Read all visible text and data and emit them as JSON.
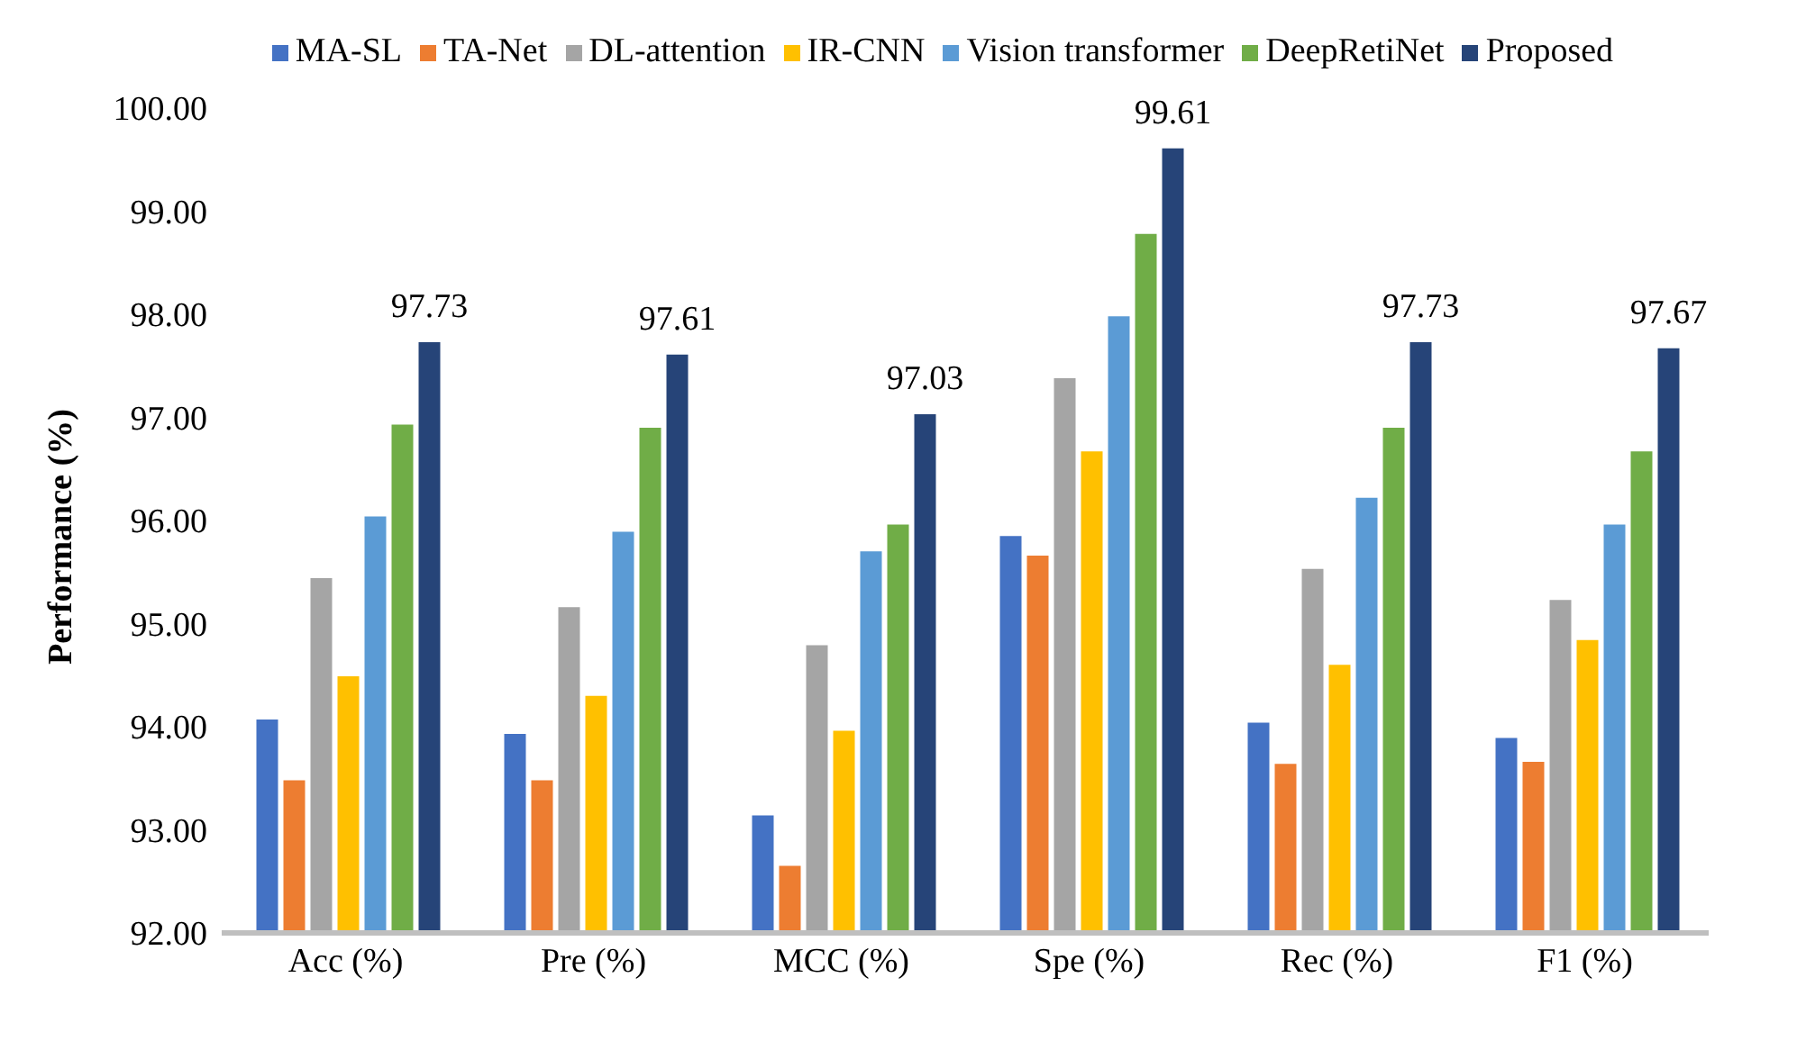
{
  "chart_data": {
    "type": "bar",
    "ylabel": "Performance (%)",
    "categories": [
      "Acc (%)",
      "Pre (%)",
      "MCC (%)",
      "Spe (%)",
      "Rec (%)",
      "F1 (%)"
    ],
    "series": [
      {
        "name": "MA-SL",
        "color": "#4472c4",
        "values": [
          94.07,
          93.93,
          93.14,
          95.85,
          94.04,
          93.89
        ]
      },
      {
        "name": "TA-Net",
        "color": "#ed7d31",
        "values": [
          93.48,
          93.48,
          92.65,
          95.66,
          93.64,
          93.66
        ]
      },
      {
        "name": "DL-attention",
        "color": "#a5a5a5",
        "values": [
          95.44,
          95.16,
          94.79,
          97.38,
          95.53,
          95.23
        ]
      },
      {
        "name": "IR-CNN",
        "color": "#ffc000",
        "values": [
          94.49,
          94.3,
          93.96,
          96.67,
          94.6,
          94.84
        ]
      },
      {
        "name": "Vision transformer",
        "color": "#5b9bd5",
        "values": [
          96.04,
          95.89,
          95.7,
          97.98,
          96.22,
          95.96
        ]
      },
      {
        "name": "DeepRetiNet",
        "color": "#70ad47",
        "values": [
          96.93,
          96.9,
          95.96,
          98.78,
          96.9,
          96.67
        ]
      },
      {
        "name": "Proposed",
        "color": "#264478",
        "values": [
          97.73,
          97.61,
          97.03,
          99.61,
          97.73,
          97.67
        ],
        "value_labels": [
          "97.73",
          "97.61",
          "97.03",
          "99.61",
          "97.73",
          "97.67"
        ]
      }
    ],
    "ylim": [
      92,
      100
    ],
    "yticks": [
      {
        "value": 92,
        "label": "92.00"
      },
      {
        "value": 93,
        "label": "93.00"
      },
      {
        "value": 94,
        "label": "94.00"
      },
      {
        "value": 95,
        "label": "95.00"
      },
      {
        "value": 96,
        "label": "96.00"
      },
      {
        "value": 97,
        "label": "97.00"
      },
      {
        "value": 98,
        "label": "98.00"
      },
      {
        "value": 99,
        "label": "99.00"
      },
      {
        "value": 100,
        "label": "100.00"
      }
    ],
    "grid": false,
    "legend": "top"
  }
}
